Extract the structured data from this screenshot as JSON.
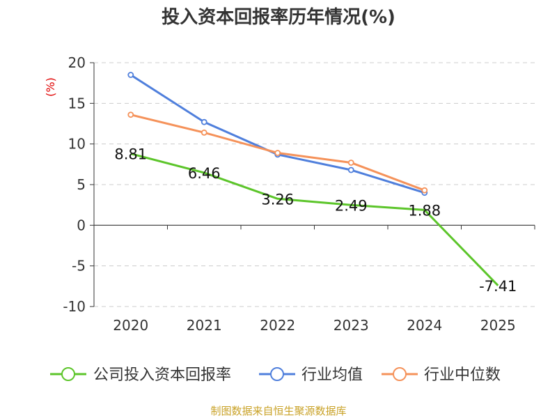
{
  "chart_data": {
    "type": "line",
    "title": "投入资本回报率历年情况(%)",
    "ylabel": "(%)",
    "xlabel": "",
    "categories": [
      "2020",
      "2021",
      "2022",
      "2023",
      "2024",
      "2025"
    ],
    "ylim": [
      -10,
      20
    ],
    "yticks": [
      -10,
      -5,
      0,
      5,
      10,
      15,
      20
    ],
    "grid": true,
    "legend_position": "bottom",
    "series": [
      {
        "name": "公司投入资本回报率",
        "color": "#5cc52a",
        "show_labels": true,
        "values": [
          8.81,
          6.46,
          3.26,
          2.49,
          1.88,
          -7.41
        ],
        "labels": [
          "8.81",
          "6.46",
          "3.26",
          "2.49",
          "1.88",
          "-7.41"
        ]
      },
      {
        "name": "行业均值",
        "color": "#4f7fdc",
        "show_labels": false,
        "values": [
          18.5,
          12.7,
          8.7,
          6.8,
          4.0,
          null
        ]
      },
      {
        "name": "行业中位数",
        "color": "#f5925a",
        "show_labels": false,
        "values": [
          13.6,
          11.4,
          8.9,
          7.7,
          4.3,
          null
        ]
      }
    ]
  },
  "source_text": "制图数据来自恒生聚源数据库"
}
